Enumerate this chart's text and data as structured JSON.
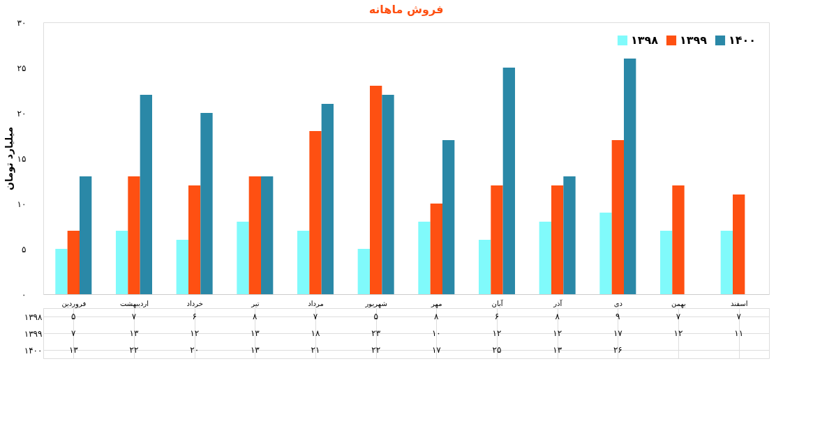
{
  "chart_data": {
    "type": "bar",
    "title": "فروش ماهانه",
    "ylabel": "میلیارد تومان",
    "categories": [
      "فروردین",
      "اردیبهشت",
      "خرداد",
      "تیر",
      "مرداد",
      "شهریور",
      "مهر",
      "آبان",
      "آذر",
      "دی",
      "بهمن",
      "اسفند"
    ],
    "series": [
      {
        "name": "۱۳۹۸",
        "color": "#80fafb",
        "values": [
          5,
          7,
          6,
          8,
          7,
          5,
          8,
          6,
          8,
          9,
          7,
          7
        ],
        "value_labels": [
          "۵",
          "۷",
          "۶",
          "۸",
          "۷",
          "۵",
          "۸",
          "۶",
          "۸",
          "۹",
          "۷",
          "۷"
        ]
      },
      {
        "name": "۱۳۹۹",
        "color": "#fe5012",
        "values": [
          7,
          13,
          12,
          13,
          18,
          23,
          10,
          12,
          12,
          17,
          12,
          11
        ],
        "value_labels": [
          "۷",
          "۱۳",
          "۱۲",
          "۱۳",
          "۱۸",
          "۲۳",
          "۱۰",
          "۱۲",
          "۱۲",
          "۱۷",
          "۱۲",
          "۱۱"
        ]
      },
      {
        "name": "۱۴۰۰",
        "color": "#2a88a7",
        "values": [
          13,
          22,
          20,
          13,
          21,
          22,
          17,
          25,
          13,
          26,
          null,
          null
        ],
        "value_labels": [
          "۱۳",
          "۲۲",
          "۲۰",
          "۱۳",
          "۲۱",
          "۲۲",
          "۱۷",
          "۲۵",
          "۱۳",
          "۲۶",
          null,
          null
        ]
      }
    ],
    "ylim": [
      0,
      30
    ],
    "yticks": [
      {
        "value": 0,
        "label": "۰"
      },
      {
        "value": 5,
        "label": "۵"
      },
      {
        "value": 10,
        "label": "۱۰"
      },
      {
        "value": 15,
        "label": "۱۵"
      },
      {
        "value": 20,
        "label": "۲۰"
      },
      {
        "value": 25,
        "label": "۲۵"
      },
      {
        "value": 30,
        "label": "۳۰"
      }
    ],
    "legend": "top right"
  }
}
